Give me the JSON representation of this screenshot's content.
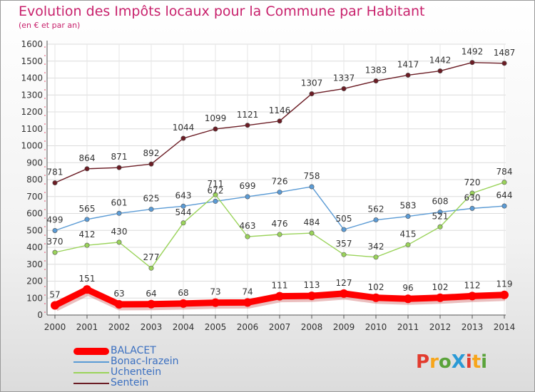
{
  "title": "Evolution des Impôts locaux pour la Commune par Habitant",
  "subtitle": "(en € et par an)",
  "brand": "ProXiti",
  "brand_colors": [
    "#e23b2e",
    "#f7a51a",
    "#5aa33a",
    "#2a9ad6",
    "#e23b2e",
    "#f7a51a",
    "#5aa33a"
  ],
  "chart_data": {
    "type": "line",
    "x": [
      "2000",
      "2001",
      "2002",
      "2003",
      "2004",
      "2005",
      "2006",
      "2007",
      "2008",
      "2009",
      "2010",
      "2011",
      "2012",
      "2013",
      "2014"
    ],
    "ylim": [
      0,
      1600
    ],
    "yticks": [
      "0",
      "100",
      "200",
      "300",
      "400",
      "500",
      "600",
      "700",
      "800",
      "900",
      "1000",
      "1100",
      "1200",
      "1300",
      "1400",
      "1500",
      "1600"
    ],
    "grid": true,
    "legend_position": "bottom-left",
    "series": [
      {
        "name": "BALACET",
        "color": "#ff0000",
        "values": [
          57,
          151,
          63,
          64,
          68,
          73,
          74,
          111,
          113,
          127,
          102,
          96,
          102,
          112,
          119
        ]
      },
      {
        "name": "Bonac-Irazein",
        "color": "#5b9bd5",
        "values": [
          499,
          565,
          601,
          625,
          643,
          672,
          699,
          726,
          758,
          505,
          562,
          583,
          608,
          630,
          644
        ]
      },
      {
        "name": "Uchentein",
        "color": "#9ad35a",
        "values": [
          370,
          412,
          430,
          277,
          544,
          711,
          463,
          476,
          484,
          357,
          342,
          415,
          521,
          720,
          784
        ]
      },
      {
        "name": "Sentein",
        "color": "#6b1c24",
        "values": [
          781,
          864,
          871,
          892,
          1044,
          1099,
          1121,
          1146,
          1307,
          1337,
          1383,
          1417,
          1442,
          1492,
          1487
        ]
      }
    ]
  }
}
